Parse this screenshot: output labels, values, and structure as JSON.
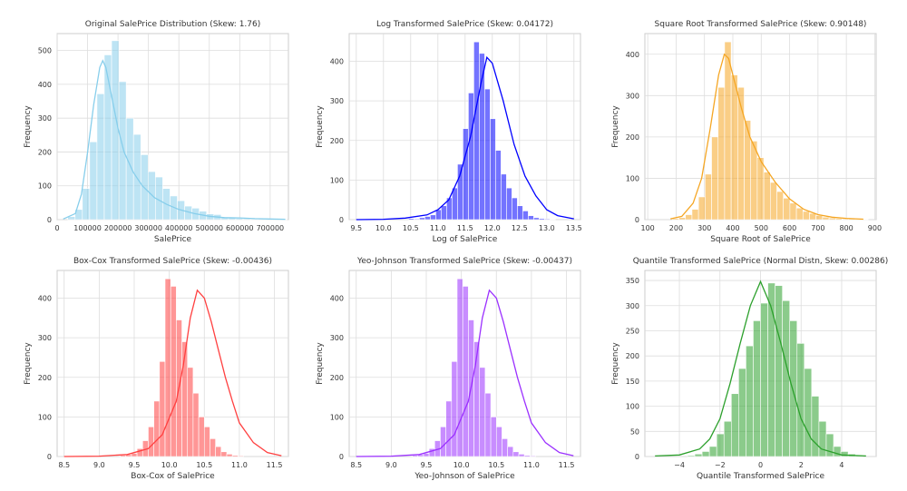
{
  "chart_data": [
    {
      "type": "histogram",
      "title": "Original SalePrice Distribution (Skew: 1.76)",
      "xlabel": "SalePrice",
      "ylabel": "Frequency",
      "xlim": [
        0,
        760000
      ],
      "ylim": [
        0,
        550
      ],
      "xticks": [
        0,
        100000,
        200000,
        300000,
        400000,
        500000,
        600000,
        700000
      ],
      "yticks": [
        0,
        100,
        200,
        300,
        400,
        500
      ],
      "color": "#87ceeb",
      "bin_start": 34900,
      "bin_width": 24004,
      "counts": [
        9,
        30,
        92,
        230,
        372,
        487,
        529,
        408,
        300,
        252,
        192,
        142,
        126,
        92,
        70,
        56,
        40,
        34,
        25,
        17,
        15,
        8,
        6,
        4,
        3,
        2,
        2,
        1,
        1,
        1
      ],
      "kde_x": [
        20000,
        60000,
        80000,
        100000,
        120000,
        140000,
        150000,
        160000,
        180000,
        200000,
        220000,
        250000,
        280000,
        320000,
        360000,
        400000,
        450000,
        500000,
        550000,
        600000,
        650000,
        700000,
        750000
      ],
      "kde_y": [
        2,
        18,
        75,
        200,
        340,
        450,
        470,
        450,
        360,
        270,
        200,
        140,
        100,
        65,
        45,
        30,
        18,
        10,
        6,
        5,
        3,
        2,
        1
      ]
    },
    {
      "type": "histogram",
      "title": "Log Transformed SalePrice (Skew: 0.04172)",
      "xlabel": "Log of SalePrice",
      "ylabel": "Frequency",
      "xlim": [
        9.37,
        13.62
      ],
      "ylim": [
        0,
        470
      ],
      "xticks": [
        9.5,
        10.0,
        10.5,
        11.0,
        11.5,
        12.0,
        12.5,
        13.0,
        13.5
      ],
      "xtick_labels": [
        "9.5",
        "10.0",
        "10.5",
        "11.0",
        "11.5",
        "12.0",
        "12.5",
        "13.0",
        "13.5"
      ],
      "yticks": [
        0,
        100,
        200,
        300,
        400
      ],
      "color": "#0000ff",
      "bin_start": 10.46,
      "bin_width": 0.1,
      "counts": [
        3,
        2,
        5,
        8,
        12,
        25,
        35,
        55,
        80,
        140,
        230,
        320,
        449,
        420,
        330,
        255,
        175,
        115,
        80,
        55,
        35,
        22,
        10,
        5,
        3,
        2,
        1
      ],
      "kde_x": [
        9.5,
        10.0,
        10.4,
        10.8,
        11.0,
        11.2,
        11.4,
        11.6,
        11.8,
        11.9,
        12.0,
        12.2,
        12.4,
        12.6,
        12.8,
        13.0,
        13.2,
        13.5
      ],
      "kde_y": [
        0,
        1,
        4,
        12,
        25,
        50,
        110,
        210,
        350,
        410,
        395,
        300,
        190,
        110,
        60,
        25,
        10,
        2
      ]
    },
    {
      "type": "histogram",
      "title": "Square Root Transformed SalePrice (Skew: 0.90148)",
      "xlabel": "Square Root of SalePrice",
      "ylabel": "Frequency",
      "xlim": [
        90,
        905
      ],
      "ylim": [
        0,
        450
      ],
      "xticks": [
        100,
        200,
        300,
        400,
        500,
        600,
        700,
        800,
        900
      ],
      "yticks": [
        0,
        100,
        200,
        300,
        400
      ],
      "color": "#f5a623",
      "bin_start": 187,
      "bin_width": 23,
      "counts": [
        3,
        5,
        12,
        25,
        55,
        110,
        200,
        320,
        430,
        350,
        320,
        240,
        190,
        150,
        115,
        90,
        68,
        52,
        40,
        28,
        20,
        15,
        10,
        6,
        4,
        3,
        2,
        2,
        1,
        1
      ],
      "kde_x": [
        180,
        220,
        260,
        290,
        320,
        350,
        370,
        385,
        400,
        430,
        460,
        500,
        550,
        600,
        650,
        700,
        750,
        800,
        860
      ],
      "kde_y": [
        2,
        8,
        40,
        100,
        220,
        350,
        400,
        390,
        350,
        270,
        200,
        140,
        90,
        50,
        25,
        12,
        6,
        3,
        1
      ]
    },
    {
      "type": "histogram",
      "title": "Box-Cox Transformed SalePrice (Skew: -0.00436)",
      "xlabel": "Box-Cox of SalePrice",
      "ylabel": "Frequency",
      "xlim": [
        8.4,
        11.7
      ],
      "ylim": [
        0,
        470
      ],
      "xticks": [
        8.5,
        9.0,
        9.5,
        10.0,
        10.5,
        11.0,
        11.5
      ],
      "xtick_labels": [
        "8.5",
        "9.0",
        "9.5",
        "10.0",
        "10.5",
        "11.0",
        "11.5"
      ],
      "yticks": [
        0,
        100,
        200,
        300,
        400
      ],
      "color": "#ff4040",
      "bin_start": 9.3,
      "bin_width": 0.08,
      "counts": [
        3,
        5,
        8,
        20,
        40,
        75,
        140,
        240,
        449,
        430,
        345,
        290,
        225,
        160,
        100,
        75,
        45,
        25,
        12,
        6,
        3,
        2
      ],
      "kde_x": [
        8.5,
        9.0,
        9.4,
        9.7,
        9.9,
        10.1,
        10.2,
        10.3,
        10.4,
        10.5,
        10.6,
        10.7,
        10.8,
        10.9,
        11.0,
        11.2,
        11.4,
        11.6
      ],
      "kde_y": [
        0,
        1,
        5,
        20,
        55,
        140,
        230,
        350,
        420,
        400,
        340,
        270,
        200,
        140,
        85,
        35,
        10,
        2
      ]
    },
    {
      "type": "histogram",
      "title": "Yeo-Johnson Transformed SalePrice (Skew: -0.00437)",
      "xlabel": "Yeo-Johnson of SalePrice",
      "ylabel": "Frequency",
      "xlim": [
        8.4,
        11.7
      ],
      "ylim": [
        0,
        470
      ],
      "xticks": [
        8.5,
        9.0,
        9.5,
        10.0,
        10.5,
        11.0,
        11.5
      ],
      "xtick_labels": [
        "8.5",
        "9.0",
        "9.5",
        "10.0",
        "10.5",
        "11.0",
        "11.5"
      ],
      "yticks": [
        0,
        100,
        200,
        300,
        400
      ],
      "color": "#9b30ff",
      "bin_start": 9.3,
      "bin_width": 0.08,
      "counts": [
        3,
        5,
        8,
        20,
        40,
        75,
        140,
        240,
        449,
        430,
        345,
        290,
        225,
        160,
        100,
        75,
        45,
        25,
        12,
        6,
        3,
        2
      ],
      "kde_x": [
        8.5,
        9.0,
        9.4,
        9.7,
        9.9,
        10.1,
        10.2,
        10.3,
        10.4,
        10.5,
        10.6,
        10.7,
        10.8,
        10.9,
        11.0,
        11.2,
        11.4,
        11.6
      ],
      "kde_y": [
        0,
        1,
        5,
        20,
        55,
        140,
        230,
        350,
        420,
        400,
        340,
        270,
        200,
        140,
        85,
        35,
        10,
        2
      ]
    },
    {
      "type": "histogram",
      "title": "Quantile Transformed SalePrice (Normal Distn, Skew: 0.00286)",
      "xlabel": "Quantile Transformed SalePrice",
      "ylabel": "Frequency",
      "xlim": [
        -5.7,
        5.7
      ],
      "ylim": [
        0,
        370
      ],
      "xticks": [
        -4,
        -2,
        0,
        2,
        4
      ],
      "xtick_labels": [
        "−4",
        "−2",
        "0",
        "2",
        "4"
      ],
      "yticks": [
        0,
        50,
        100,
        150,
        200,
        250,
        300,
        350
      ],
      "color": "#2ca02c",
      "bin_start": -3.6,
      "bin_width": 0.36,
      "counts": [
        2,
        5,
        10,
        20,
        45,
        70,
        125,
        175,
        220,
        270,
        305,
        345,
        340,
        310,
        270,
        225,
        175,
        120,
        70,
        45,
        20,
        10,
        5,
        2
      ],
      "kde_x": [
        -5.2,
        -4.0,
        -3.0,
        -2.5,
        -2.0,
        -1.5,
        -1.0,
        -0.5,
        0.0,
        0.5,
        1.0,
        1.5,
        2.0,
        2.5,
        3.0,
        4.0,
        5.2
      ],
      "kde_y": [
        1,
        3,
        15,
        35,
        75,
        145,
        225,
        300,
        348,
        300,
        225,
        145,
        75,
        35,
        15,
        3,
        1
      ]
    }
  ]
}
